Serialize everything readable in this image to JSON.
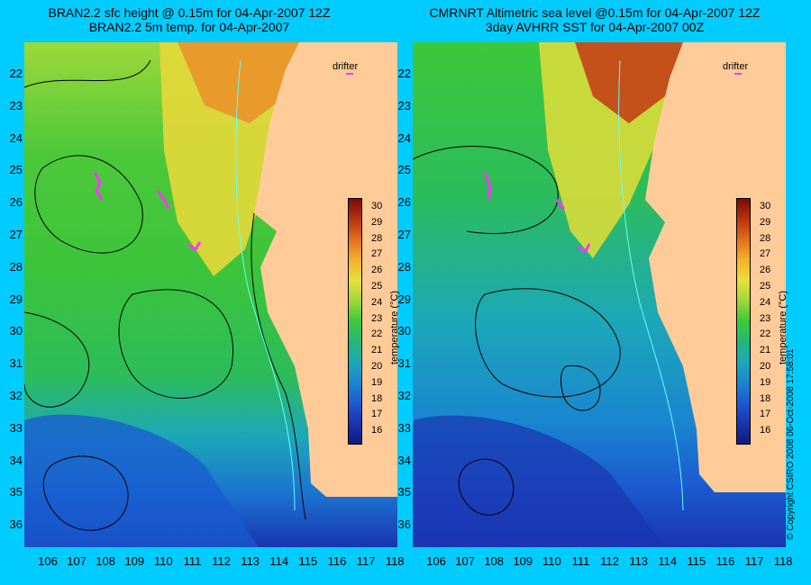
{
  "left_panel": {
    "title_line1": "BRAN2.2 sfc height @ 0.15m for 04-Apr-2007 12Z",
    "title_line2": "BRAN2.2 5m temp. for 04-Apr-2007"
  },
  "right_panel": {
    "title_line1": "CMRNRT Altimetric sea level  @0.15m  for 04-Apr-2007 12Z",
    "title_line2": "3day AVHRR SST for 04-Apr-2007 00Z"
  },
  "map": {
    "lat_labels": [
      "22",
      "23",
      "24",
      "25",
      "26",
      "27",
      "28",
      "29",
      "30",
      "31",
      "32",
      "33",
      "34",
      "35",
      "36"
    ],
    "lon_labels": [
      "106",
      "107",
      "108",
      "109",
      "110",
      "111",
      "112",
      "113",
      "114",
      "115",
      "116",
      "117",
      "118"
    ],
    "lat_range_south": [
      21.5,
      36.3
    ],
    "lon_range_east": [
      105.3,
      118.3
    ],
    "drifter_label": "drifter"
  },
  "colorbar": {
    "ticks": [
      "30",
      "29",
      "28",
      "27",
      "26",
      "25",
      "24",
      "23",
      "22",
      "21",
      "20",
      "19",
      "18",
      "17",
      "16"
    ],
    "title": "temperature (°C)",
    "colors": [
      "#7a0a05",
      "#b83410",
      "#e0701c",
      "#f3b12d",
      "#e6e03a",
      "#9ed83a",
      "#3cc83a",
      "#22b877",
      "#1ca8b8",
      "#1a86d0",
      "#1b5ad0",
      "#1a34b0",
      "#101a80"
    ]
  },
  "land_color": "#ffcc99",
  "copyright": "© Copyright CSIRO 2008    06-Oct-2008 17:58:01"
}
